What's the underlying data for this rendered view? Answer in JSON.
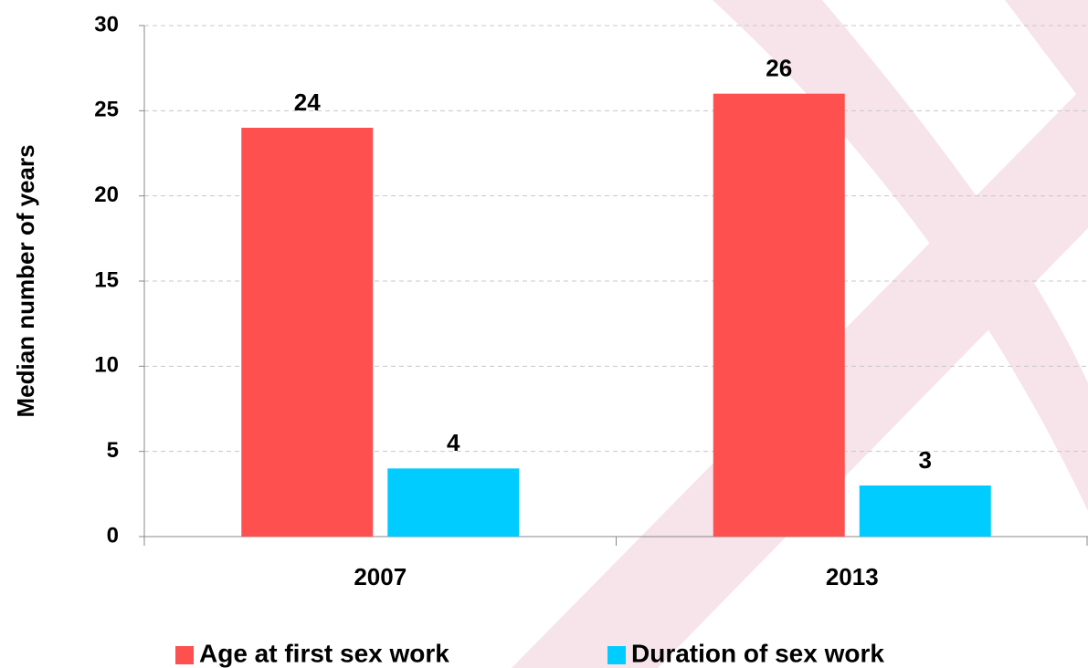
{
  "chart_data": {
    "type": "bar",
    "y_label": "Median number of years",
    "categories": [
      "2007",
      "2013"
    ],
    "series": [
      {
        "name": "Age at first sex work",
        "color": "#ff5050",
        "values": [
          24,
          26
        ]
      },
      {
        "name": "Duration of sex work",
        "color": "#00ccff",
        "values": [
          4,
          3
        ]
      }
    ],
    "ylim": [
      0,
      30
    ],
    "yticks": [
      0,
      5,
      10,
      15,
      20,
      25,
      30
    ],
    "grid": true,
    "legend": "bottom"
  }
}
